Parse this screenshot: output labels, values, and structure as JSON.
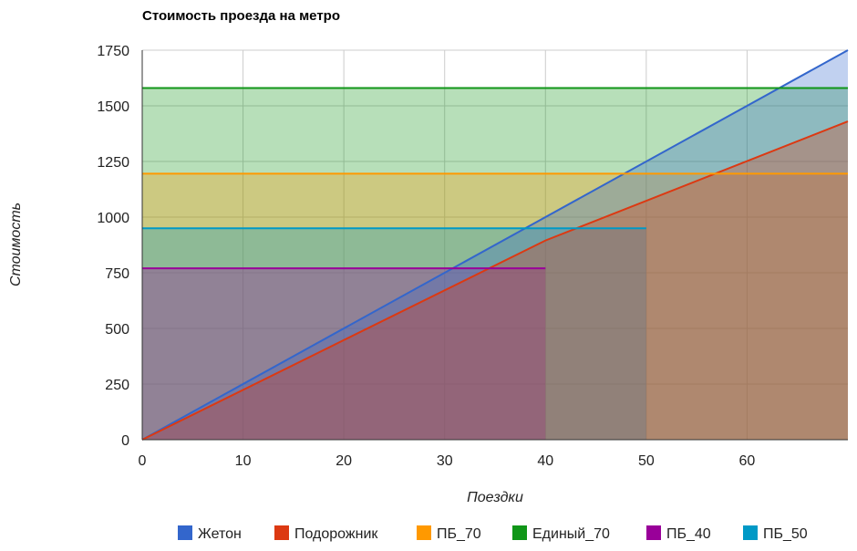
{
  "chart_data": {
    "type": "area",
    "title": "Стоимость проезда на метро",
    "xlabel": "Поездки",
    "ylabel": "Стоимость",
    "xlim": [
      0,
      70
    ],
    "ylim": [
      0,
      1750
    ],
    "x_ticks": [
      0,
      10,
      20,
      30,
      40,
      50,
      60
    ],
    "y_ticks": [
      0,
      250,
      500,
      750,
      1000,
      1250,
      1500,
      1750
    ],
    "grid": true,
    "legend_position": "bottom",
    "series": [
      {
        "name": "Жетон",
        "color": "#3366cc",
        "x": [
          0,
          70
        ],
        "y": [
          0,
          1750
        ]
      },
      {
        "name": "Подорожник",
        "color": "#dc3912",
        "x": [
          0,
          40,
          70
        ],
        "y": [
          0,
          895,
          1430
        ]
      },
      {
        "name": "ПБ_70",
        "color": "#ff9900",
        "x": [
          0,
          70
        ],
        "y": [
          1195,
          1195
        ]
      },
      {
        "name": "Единый_70",
        "color": "#109618",
        "x": [
          0,
          70
        ],
        "y": [
          1580,
          1580
        ]
      },
      {
        "name": "ПБ_40",
        "color": "#990099",
        "x": [
          0,
          40
        ],
        "y": [
          770,
          770
        ]
      },
      {
        "name": "ПБ_50",
        "color": "#0099c6",
        "x": [
          0,
          50
        ],
        "y": [
          950,
          950
        ]
      }
    ],
    "draw_order": [
      3,
      2,
      5,
      4,
      0,
      1
    ]
  }
}
